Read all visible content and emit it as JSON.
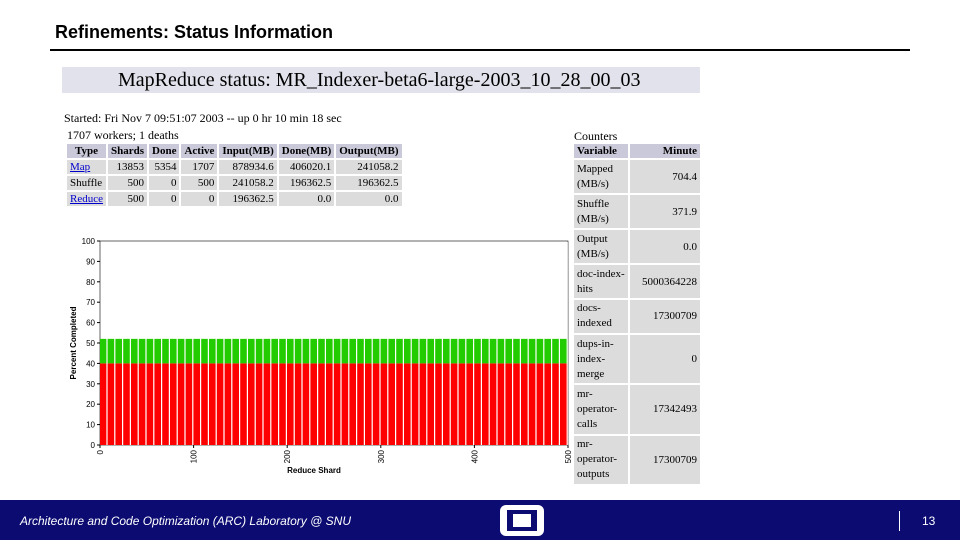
{
  "slide": {
    "title": "Refinements: Status Information",
    "footer": "Architecture and Code Optimization (ARC) Laboratory @ SNU",
    "page": "13"
  },
  "status": {
    "header": "MapReduce status: MR_Indexer-beta6-large-2003_10_28_00_03",
    "started": "Started: Fri Nov 7 09:51:07 2003 -- up 0 hr 10 min 18 sec",
    "workers": "1707 workers; 1 deaths"
  },
  "table": {
    "columns": [
      "Type",
      "Shards",
      "Done",
      "Active",
      "Input(MB)",
      "Done(MB)",
      "Output(MB)"
    ],
    "rows": [
      [
        "Map",
        "13853",
        "5354",
        "1707",
        "878934.6",
        "406020.1",
        "241058.2"
      ],
      [
        "Shuffle",
        "500",
        "0",
        "500",
        "241058.2",
        "196362.5",
        "196362.5"
      ],
      [
        "Reduce",
        "500",
        "0",
        "0",
        "196362.5",
        "0.0",
        "0.0"
      ]
    ]
  },
  "counters": {
    "title": "Counters",
    "columns": [
      "Variable",
      "Minute"
    ],
    "rows": [
      [
        "Mapped (MB/s)",
        "704.4"
      ],
      [
        "Shuffle (MB/s)",
        "371.9"
      ],
      [
        "Output (MB/s)",
        "0.0"
      ],
      [
        "doc-index-hits",
        "5000364228"
      ],
      [
        "docs-indexed",
        "17300709"
      ],
      [
        "dups-in-index-merge",
        "0"
      ],
      [
        "mr-operator-calls",
        "17342493"
      ],
      [
        "mr-operator-outputs",
        "17300709"
      ]
    ]
  },
  "chart_data": {
    "type": "area",
    "stacked": true,
    "x": [
      0,
      500
    ],
    "series": [
      {
        "color": "#ff0000",
        "values": [
          40,
          40
        ]
      },
      {
        "color": "#22cc00",
        "values": [
          12,
          12
        ]
      }
    ],
    "xlim": [
      0,
      500
    ],
    "ylim": [
      0,
      100
    ],
    "xticks": [
      0,
      100,
      200,
      300,
      400,
      500
    ],
    "yticks": [
      0,
      10,
      20,
      30,
      40,
      50,
      60,
      70,
      80,
      90,
      100
    ],
    "xlabel": "Reduce Shard",
    "ylabel": "Percent Completed"
  }
}
